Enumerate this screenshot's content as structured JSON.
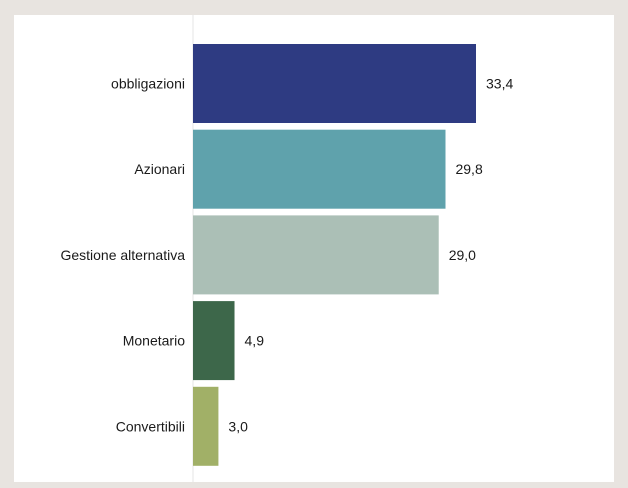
{
  "chart_data": {
    "type": "bar",
    "orientation": "horizontal",
    "categories": [
      "obbligazioni",
      "Azionari",
      "Gestione alternativa",
      "Monetario",
      "Convertibili"
    ],
    "values": [
      33.4,
      29.8,
      29.0,
      4.9,
      3.0
    ],
    "value_labels": [
      "33,4",
      "29,8",
      "29,0",
      "4,9",
      "3,0"
    ],
    "colors": [
      "#2e3b82",
      "#5fa2ac",
      "#abbfb6",
      "#3d674a",
      "#a1b067"
    ],
    "title": "",
    "xlabel": "",
    "ylabel": "",
    "xlim": [
      0,
      33.4
    ],
    "grid": false,
    "legend": "none"
  }
}
